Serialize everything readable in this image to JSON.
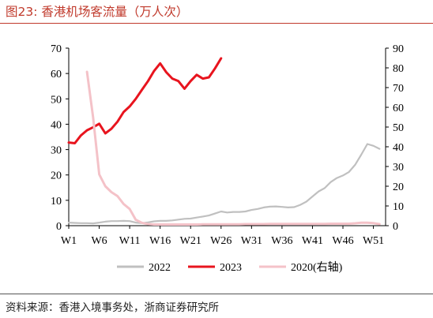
{
  "title": "图23:  香港机场客流量（万人次）",
  "source": "资料来源：香港入境事务处，浙商证券研究所",
  "chart_data": {
    "type": "line",
    "x_tick_labels": [
      "W1",
      "W6",
      "W11",
      "W16",
      "W21",
      "W26",
      "W31",
      "W36",
      "W41",
      "W46",
      "W51"
    ],
    "x_tick_weeks": [
      1,
      6,
      11,
      16,
      21,
      26,
      31,
      36,
      41,
      46,
      51
    ],
    "x_range": [
      1,
      53
    ],
    "y_left": {
      "min": 0,
      "max": 70,
      "ticks": [
        0,
        10,
        20,
        30,
        40,
        50,
        60,
        70
      ]
    },
    "y_right": {
      "min": 0,
      "max": 90,
      "ticks": [
        0,
        10,
        20,
        30,
        40,
        50,
        60,
        70,
        80,
        90
      ]
    },
    "legend_position": "bottom",
    "series": [
      {
        "name": "2022",
        "axis": "left",
        "color": "#c0c0c0",
        "width": 2.2,
        "x": [
          1,
          2,
          3,
          4,
          5,
          6,
          7,
          8,
          9,
          10,
          11,
          12,
          13,
          14,
          15,
          16,
          17,
          18,
          19,
          20,
          21,
          22,
          23,
          24,
          25,
          26,
          27,
          28,
          29,
          30,
          31,
          32,
          33,
          34,
          35,
          36,
          37,
          38,
          39,
          40,
          41,
          42,
          43,
          44,
          45,
          46,
          47,
          48,
          49,
          50,
          51,
          52
        ],
        "y": [
          1.2,
          1.1,
          1.0,
          1.0,
          0.9,
          1.2,
          1.6,
          1.8,
          1.8,
          1.9,
          1.8,
          1.2,
          1.0,
          1.3,
          1.7,
          1.9,
          1.9,
          2.1,
          2.4,
          2.7,
          2.8,
          3.2,
          3.6,
          4.0,
          4.8,
          5.6,
          5.2,
          5.4,
          5.4,
          5.6,
          6.2,
          6.6,
          7.2,
          7.5,
          7.6,
          7.4,
          7.2,
          7.3,
          8.2,
          9.5,
          11.5,
          13.5,
          14.8,
          17.2,
          18.8,
          19.8,
          21.2,
          24.0,
          28.0,
          32.2,
          31.5,
          30.3
        ]
      },
      {
        "name": "2023",
        "axis": "left",
        "color": "#e8141e",
        "width": 3,
        "x": [
          1,
          2,
          3,
          4,
          5,
          6,
          7,
          8,
          9,
          10,
          11,
          12,
          13,
          14,
          15,
          16,
          17,
          18,
          19,
          20,
          21,
          22,
          23,
          24,
          25,
          26
        ],
        "y": [
          32.8,
          32.5,
          35.6,
          37.6,
          38.8,
          40.2,
          36.4,
          38.2,
          41.0,
          44.8,
          47.0,
          50.0,
          53.5,
          57.0,
          61.0,
          64.0,
          60.5,
          58.0,
          57.0,
          54.0,
          57.0,
          59.5,
          58.0,
          58.5,
          62.0,
          66.0
        ]
      },
      {
        "name": "2020(右轴)",
        "axis": "right",
        "color": "#f4c2c8",
        "width": 3,
        "x": [
          4,
          5,
          6,
          7,
          8,
          9,
          10,
          11,
          12,
          13,
          14,
          15,
          16,
          17,
          18,
          19,
          20,
          21,
          22,
          23,
          24,
          25,
          26,
          27,
          28,
          29,
          30,
          31,
          32,
          33,
          34,
          35,
          36,
          37,
          38,
          39,
          40,
          41,
          42,
          43,
          44,
          45,
          46,
          47,
          48,
          49,
          50,
          51,
          52
        ],
        "y": [
          78,
          55,
          26,
          20,
          17,
          15,
          11,
          8.5,
          3,
          1.5,
          0.8,
          0.6,
          0.6,
          0.6,
          0.6,
          0.6,
          0.6,
          0.6,
          0.6,
          0.7,
          0.7,
          0.7,
          0.7,
          0.7,
          0.7,
          0.7,
          0.8,
          0.8,
          0.8,
          0.8,
          0.9,
          0.9,
          0.9,
          0.9,
          0.9,
          0.9,
          0.9,
          0.9,
          0.9,
          0.9,
          1.0,
          1.0,
          1.0,
          1.0,
          1.2,
          1.5,
          1.5,
          1.3,
          0.8
        ]
      }
    ]
  }
}
